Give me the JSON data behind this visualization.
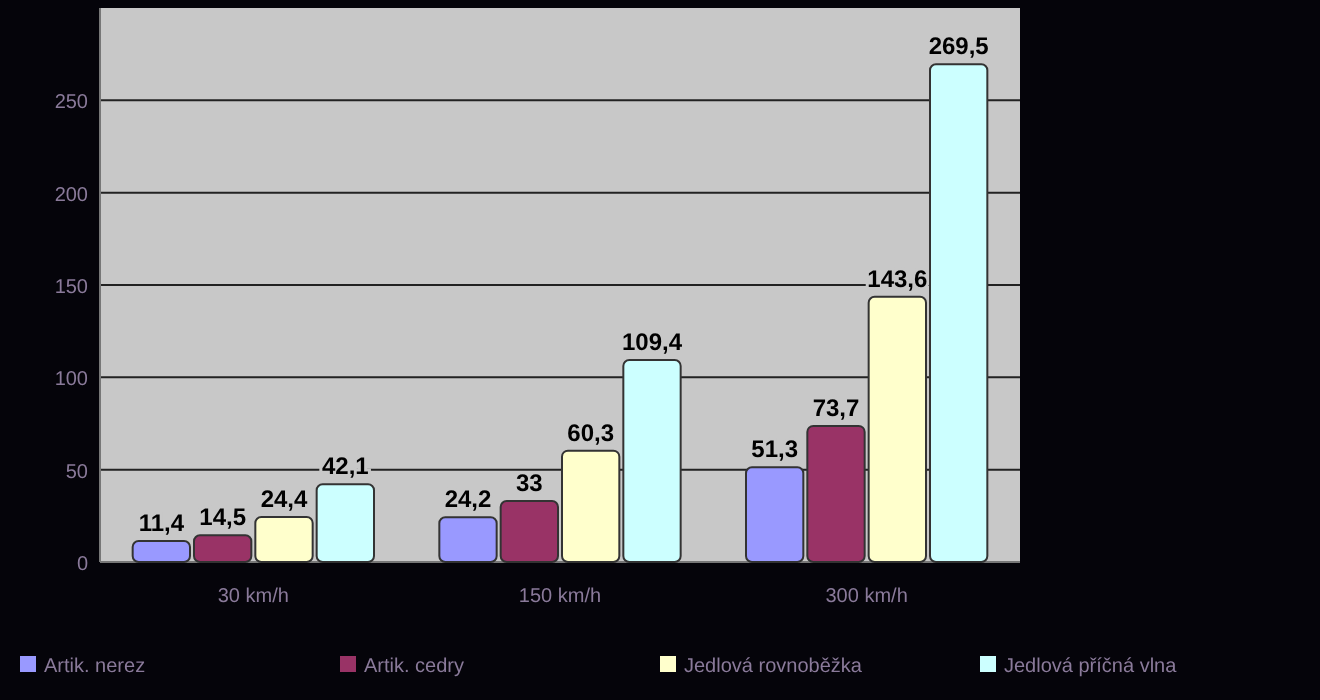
{
  "chart_data": {
    "type": "bar",
    "categories": [
      "30 km/h",
      "150 km/h",
      "300 km/h"
    ],
    "series": [
      {
        "name": "Artik. nerez",
        "color": "#9999ff",
        "values": [
          11.4,
          24.2,
          51.3
        ],
        "value_labels": [
          "11,4",
          "24,2",
          "51,3"
        ]
      },
      {
        "name": "Artik. cedry",
        "color": "#993366",
        "values": [
          14.5,
          33,
          73.7
        ],
        "value_labels": [
          "14,5",
          "33",
          "73,7"
        ]
      },
      {
        "name": "Jedlová rovnoběžka",
        "color": "#ffffcc",
        "values": [
          24.4,
          60.3,
          143.6
        ],
        "value_labels": [
          "24,4",
          "60,3",
          "143,6"
        ]
      },
      {
        "name": "Jedlová příčná vlna",
        "color": "#ccffff",
        "values": [
          42.1,
          109.4,
          269.5
        ],
        "value_labels": [
          "42,1",
          "109,4",
          "269,5"
        ]
      }
    ],
    "ylim": [
      0,
      300
    ],
    "yticks": [
      0,
      50,
      100,
      150,
      200,
      250
    ],
    "grid": "y",
    "legend": "bottom"
  }
}
